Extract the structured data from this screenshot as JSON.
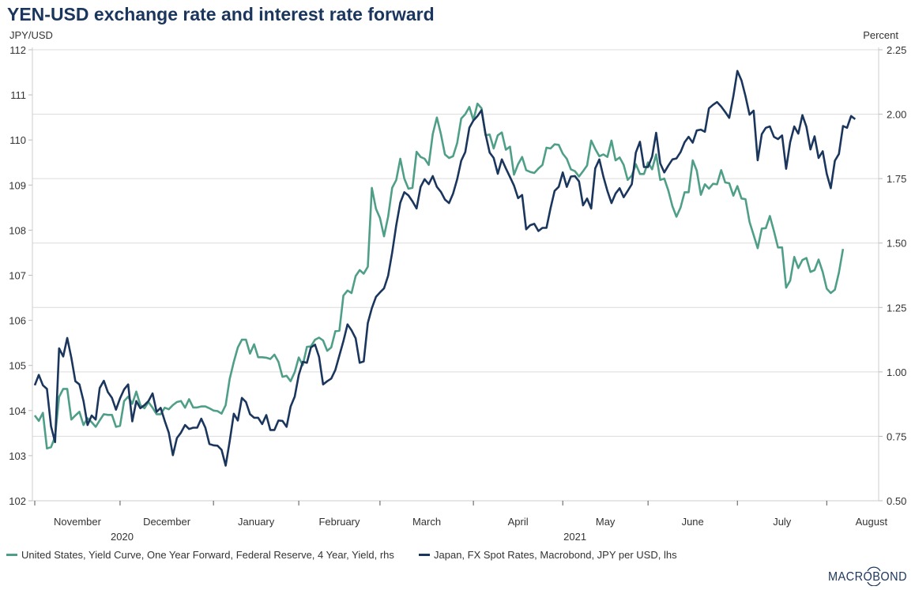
{
  "chart_data": {
    "type": "line",
    "title": "YEN-USD exchange rate and interest rate forward",
    "ylabel_left": "JPY/USD",
    "ylabel_right": "Percent",
    "ylim_left": [
      102,
      112
    ],
    "ylim_right": [
      0.5,
      2.25
    ],
    "yticks_left": [
      "102",
      "103",
      "104",
      "105",
      "106",
      "107",
      "108",
      "109",
      "110",
      "111",
      "112"
    ],
    "yticks_right": [
      "0.50",
      "0.75",
      "1.00",
      "1.25",
      "1.50",
      "1.75",
      "2.00",
      "2.25"
    ],
    "xticks": [
      "November",
      "December",
      "January",
      "February",
      "March",
      "April",
      "May",
      "June",
      "July",
      "August"
    ],
    "xyears": [
      "2020",
      "2021"
    ],
    "grid": true,
    "legend_position": "bottom",
    "x": [
      "2020-11-02",
      "2020-11-03",
      "2020-11-04",
      "2020-11-05",
      "2020-11-06",
      "2020-11-09",
      "2020-11-10",
      "2020-11-11",
      "2020-11-12",
      "2020-11-13",
      "2020-11-16",
      "2020-11-17",
      "2020-11-18",
      "2020-11-19",
      "2020-11-20",
      "2020-11-23",
      "2020-11-24",
      "2020-11-25",
      "2020-11-26",
      "2020-11-27",
      "2020-11-30",
      "2020-12-01",
      "2020-12-02",
      "2020-12-03",
      "2020-12-04",
      "2020-12-07",
      "2020-12-08",
      "2020-12-09",
      "2020-12-10",
      "2020-12-11",
      "2020-12-14",
      "2020-12-15",
      "2020-12-16",
      "2020-12-17",
      "2020-12-18",
      "2020-12-21",
      "2020-12-22",
      "2020-12-23",
      "2020-12-24",
      "2020-12-25",
      "2020-12-28",
      "2020-12-29",
      "2020-12-30",
      "2020-12-31",
      "2021-01-01",
      "2021-01-04",
      "2021-01-05",
      "2021-01-06",
      "2021-01-07",
      "2021-01-08",
      "2021-01-11",
      "2021-01-12",
      "2021-01-13",
      "2021-01-14",
      "2021-01-15",
      "2021-01-18",
      "2021-01-19",
      "2021-01-20",
      "2021-01-21",
      "2021-01-22",
      "2021-01-25",
      "2021-01-26",
      "2021-01-27",
      "2021-01-28",
      "2021-01-29",
      "2021-02-01",
      "2021-02-02",
      "2021-02-03",
      "2021-02-04",
      "2021-02-05",
      "2021-02-08",
      "2021-02-09",
      "2021-02-10",
      "2021-02-11",
      "2021-02-12",
      "2021-02-15",
      "2021-02-16",
      "2021-02-17",
      "2021-02-18",
      "2021-02-19",
      "2021-02-22",
      "2021-02-23",
      "2021-02-24",
      "2021-02-25",
      "2021-02-26",
      "2021-03-01",
      "2021-03-02",
      "2021-03-03",
      "2021-03-04",
      "2021-03-05",
      "2021-03-08",
      "2021-03-09",
      "2021-03-10",
      "2021-03-11",
      "2021-03-12",
      "2021-03-15",
      "2021-03-16",
      "2021-03-17",
      "2021-03-18",
      "2021-03-19",
      "2021-03-22",
      "2021-03-23",
      "2021-03-24",
      "2021-03-25",
      "2021-03-26",
      "2021-03-29",
      "2021-03-30",
      "2021-03-31",
      "2021-04-01",
      "2021-04-02",
      "2021-04-05",
      "2021-04-06",
      "2021-04-07",
      "2021-04-08",
      "2021-04-09",
      "2021-04-12",
      "2021-04-13",
      "2021-04-14",
      "2021-04-15",
      "2021-04-16",
      "2021-04-19",
      "2021-04-20",
      "2021-04-21",
      "2021-04-22",
      "2021-04-23",
      "2021-04-26",
      "2021-04-27",
      "2021-04-28",
      "2021-04-29",
      "2021-04-30",
      "2021-05-03",
      "2021-05-04",
      "2021-05-05",
      "2021-05-06",
      "2021-05-07",
      "2021-05-10",
      "2021-05-11",
      "2021-05-12",
      "2021-05-13",
      "2021-05-14",
      "2021-05-17",
      "2021-05-18",
      "2021-05-19",
      "2021-05-20",
      "2021-05-21",
      "2021-05-24",
      "2021-05-25",
      "2021-05-26",
      "2021-05-27",
      "2021-05-28",
      "2021-05-31",
      "2021-06-01",
      "2021-06-02",
      "2021-06-03",
      "2021-06-04",
      "2021-06-07",
      "2021-06-08",
      "2021-06-09",
      "2021-06-10",
      "2021-06-11",
      "2021-06-14",
      "2021-06-15",
      "2021-06-16",
      "2021-06-17",
      "2021-06-18",
      "2021-06-21",
      "2021-06-22",
      "2021-06-23",
      "2021-06-24",
      "2021-06-25",
      "2021-06-28",
      "2021-06-29",
      "2021-06-30",
      "2021-07-01",
      "2021-07-02",
      "2021-07-05",
      "2021-07-06",
      "2021-07-07",
      "2021-07-08",
      "2021-07-09",
      "2021-07-12",
      "2021-07-13",
      "2021-07-14",
      "2021-07-15",
      "2021-07-16",
      "2021-07-19",
      "2021-07-20",
      "2021-07-21",
      "2021-07-22",
      "2021-07-23",
      "2021-07-26",
      "2021-07-27",
      "2021-07-28",
      "2021-07-29",
      "2021-07-30",
      "2021-08-02",
      "2021-08-03",
      "2021-08-04",
      "2021-08-05",
      "2021-08-06",
      "2021-08-09",
      "2021-08-10",
      "2021-08-11"
    ],
    "series": [
      {
        "name": "United States, Yield Curve, One Year Forward, Federal Reserve, 4 Year, Yield, rhs",
        "axis": "right",
        "color": "#4f9f88",
        "values": [
          0.831,
          0.81,
          0.841,
          0.703,
          0.708,
          0.749,
          0.903,
          0.934,
          0.934,
          0.815,
          0.831,
          0.845,
          0.794,
          0.82,
          0.805,
          0.787,
          0.812,
          0.836,
          0.833,
          0.833,
          0.787,
          0.791,
          0.887,
          0.904,
          0.876,
          0.924,
          0.871,
          0.859,
          0.883,
          0.861,
          0.836,
          0.836,
          0.861,
          0.855,
          0.871,
          0.883,
          0.887,
          0.861,
          0.894,
          0.862,
          0.862,
          0.866,
          0.866,
          0.859,
          0.85,
          0.848,
          0.838,
          0.871,
          0.973,
          1.039,
          1.095,
          1.125,
          1.125,
          1.071,
          1.107,
          1.057,
          1.057,
          1.055,
          1.05,
          1.067,
          1.039,
          0.981,
          0.985,
          0.964,
          0.999,
          1.056,
          1.026,
          1.097,
          1.099,
          1.125,
          1.133,
          1.122,
          1.082,
          1.095,
          1.158,
          1.16,
          1.296,
          1.316,
          1.306,
          1.372,
          1.395,
          1.381,
          1.408,
          1.714,
          1.633,
          1.597,
          1.526,
          1.602,
          1.714,
          1.745,
          1.827,
          1.75,
          1.711,
          1.714,
          1.854,
          1.834,
          1.827,
          1.803,
          1.923,
          1.987,
          1.923,
          1.844,
          1.83,
          1.837,
          1.888,
          1.983,
          2.0,
          2.028,
          1.977,
          2.041,
          2.023,
          1.918,
          1.921,
          1.867,
          1.918,
          1.929,
          1.862,
          1.874,
          1.765,
          1.806,
          1.834,
          1.783,
          1.776,
          1.772,
          1.789,
          1.803,
          1.87,
          1.867,
          1.883,
          1.881,
          1.847,
          1.827,
          1.786,
          1.779,
          1.758,
          1.779,
          1.801,
          1.898,
          1.865,
          1.837,
          1.844,
          1.834,
          1.898,
          1.821,
          1.832,
          1.803,
          1.745,
          1.762,
          1.806,
          1.768,
          1.768,
          1.813,
          1.786,
          1.844,
          1.745,
          1.75,
          1.704,
          1.643,
          1.602,
          1.638,
          1.697,
          1.697,
          1.821,
          1.781,
          1.687,
          1.728,
          1.711,
          1.73,
          1.728,
          1.783,
          1.735,
          1.732,
          1.684,
          1.721,
          1.673,
          1.67,
          1.582,
          1.531,
          1.48,
          1.556,
          1.558,
          1.605,
          1.546,
          1.483,
          1.483,
          1.327,
          1.354,
          1.446,
          1.403,
          1.434,
          1.442,
          1.388,
          1.395,
          1.436,
          1.388,
          1.323,
          1.306,
          1.319,
          1.385,
          1.477,
          null,
          null,
          null
        ]
      },
      {
        "name": "Japan, FX Spot Rates, Macrobond, JPY per USD, lhs",
        "axis": "left",
        "color": "#1b365d",
        "values": [
          104.56,
          104.79,
          104.56,
          104.48,
          103.65,
          103.3,
          105.38,
          105.2,
          105.61,
          105.17,
          104.65,
          104.58,
          104.21,
          103.68,
          103.89,
          103.8,
          104.5,
          104.66,
          104.41,
          104.28,
          104.02,
          104.27,
          104.47,
          104.58,
          103.76,
          104.21,
          104.05,
          104.12,
          104.21,
          104.38,
          103.97,
          104.06,
          103.77,
          103.51,
          103.01,
          103.39,
          103.51,
          103.68,
          103.59,
          103.62,
          103.62,
          103.82,
          103.62,
          103.26,
          103.23,
          103.22,
          103.13,
          102.78,
          103.32,
          103.93,
          103.78,
          104.28,
          104.19,
          103.92,
          103.84,
          103.84,
          103.7,
          103.9,
          103.57,
          103.57,
          103.78,
          103.77,
          103.64,
          104.09,
          104.31,
          104.79,
          105.08,
          105.06,
          105.4,
          105.46,
          105.19,
          104.58,
          104.65,
          104.71,
          104.9,
          105.22,
          105.54,
          105.91,
          105.78,
          105.6,
          105.06,
          105.09,
          105.94,
          106.27,
          106.52,
          106.62,
          106.71,
          106.99,
          107.5,
          108.11,
          108.61,
          108.84,
          108.77,
          108.64,
          108.48,
          108.96,
          109.13,
          109.02,
          109.2,
          108.96,
          108.85,
          108.68,
          108.6,
          108.81,
          109.13,
          109.54,
          109.73,
          110.27,
          110.43,
          110.53,
          110.66,
          110.13,
          109.72,
          109.6,
          109.25,
          109.57,
          109.37,
          109.18,
          108.99,
          108.71,
          108.78,
          108.02,
          108.11,
          108.14,
          107.98,
          108.05,
          108.05,
          108.49,
          108.87,
          108.96,
          109.28,
          108.96,
          109.19,
          109.2,
          109.08,
          108.55,
          108.7,
          108.48,
          109.37,
          109.57,
          109.19,
          108.87,
          108.6,
          108.81,
          108.93,
          108.73,
          108.87,
          109.02,
          109.72,
          109.96,
          109.4,
          109.4,
          109.63,
          110.16,
          109.48,
          109.28,
          109.43,
          109.57,
          109.59,
          109.73,
          109.95,
          110.07,
          109.94,
          110.21,
          110.23,
          110.18,
          110.7,
          110.78,
          110.84,
          110.74,
          110.62,
          110.49,
          110.97,
          111.53,
          111.32,
          110.97,
          110.56,
          110.65,
          109.55,
          110.13,
          110.27,
          110.3,
          110.07,
          110.02,
          110.1,
          109.36,
          109.95,
          110.3,
          110.14,
          110.55,
          110.29,
          109.79,
          110.08,
          109.6,
          109.75,
          109.25,
          108.93,
          109.54,
          109.69,
          110.31,
          110.27,
          110.53,
          110.46
        ]
      }
    ]
  },
  "branding": {
    "logo": "MACROBOND"
  }
}
